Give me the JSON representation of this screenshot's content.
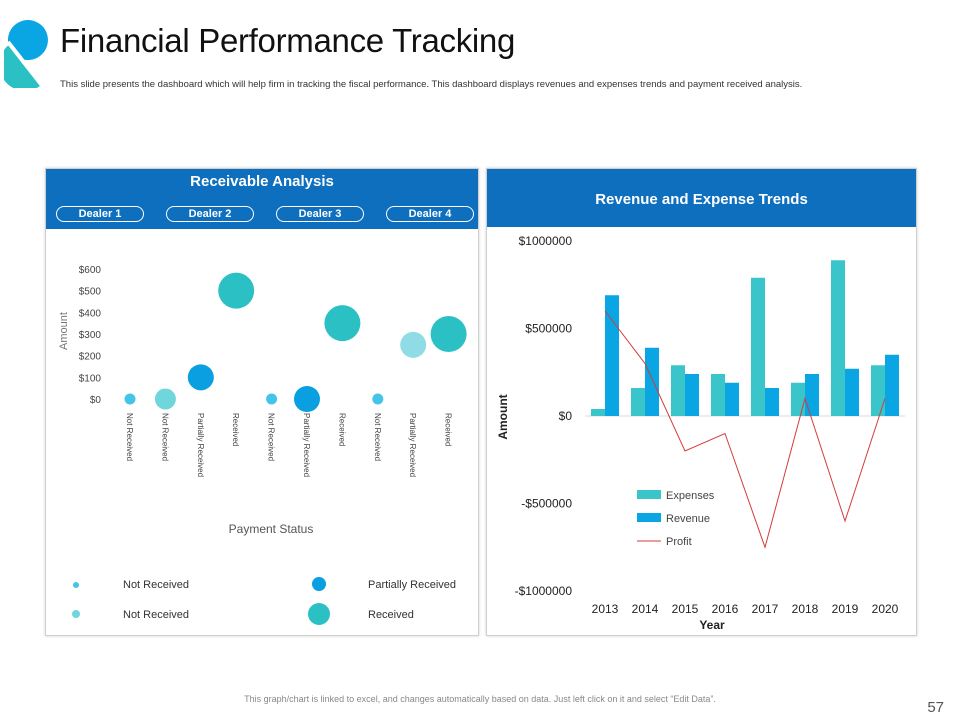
{
  "header": {
    "title": "Financial Performance Tracking",
    "subtitle": "This slide presents the dashboard which will help firm in tracking the fiscal performance. This dashboard displays revenues and expenses trends and payment received analysis."
  },
  "footer": {
    "note": "This graph/chart is linked to excel, and changes automatically based on data. Just left click on it and select “Edit Data”.",
    "page_number": "57"
  },
  "colors": {
    "header_blue": "#0d6fbe",
    "expenses": "#39c5c9",
    "revenue": "#0aa5e3",
    "profit": "#d43b3b",
    "not_received_light": "#8fdce6",
    "received": "#2bc1c4",
    "partially_received": "#0a9fe0"
  },
  "receivable": {
    "title": "Receivable Analysis",
    "dealers": [
      "Dealer 1",
      "Dealer 2",
      "Dealer 3",
      "Dealer 4"
    ],
    "legend": [
      {
        "label": "Not Received",
        "color": "#44c4e8",
        "size": "tiny"
      },
      {
        "label": "Partially  Received",
        "color": "#0a9fe0",
        "size": "medium"
      },
      {
        "label": "Not Received",
        "color": "#6fd6dc",
        "size": "small"
      },
      {
        "label": "Received",
        "color": "#2bc1c4",
        "size": "large"
      }
    ]
  },
  "chart_data": [
    {
      "type": "scatter",
      "title": "Receivable Analysis",
      "xlabel": "Payment Status",
      "ylabel": "Amount",
      "ylim": [
        0,
        600
      ],
      "yticks": [
        "$0",
        "$100",
        "$200",
        "$300",
        "$400",
        "$500",
        "$600"
      ],
      "categories": [
        "Not Received",
        "Not Received",
        "Partially Received",
        "Received",
        "Not Received",
        "Partially Received",
        "Received",
        "Not Received",
        "Partially Received",
        "Received"
      ],
      "values": [
        0,
        0,
        100,
        500,
        0,
        0,
        350,
        0,
        250,
        300
      ],
      "bubble_sizes": [
        1,
        3,
        4,
        6,
        1,
        4,
        6,
        1,
        4,
        6
      ],
      "point_colors": [
        "#44c4e8",
        "#6fd6dc",
        "#0a9fe0",
        "#2bc1c4",
        "#44c4e8",
        "#0a9fe0",
        "#2bc1c4",
        "#44c4e8",
        "#8fdce6",
        "#2bc1c4"
      ]
    },
    {
      "type": "bar",
      "title": "Revenue and Expense Trends",
      "xlabel": "Year",
      "ylabel": "Amount",
      "ylim": [
        -1000000,
        1000000
      ],
      "yticks": [
        "$1000000",
        "$500000",
        "$0",
        "-$500000",
        "-$1000000"
      ],
      "categories": [
        "2013",
        "2014",
        "2015",
        "2016",
        "2017",
        "2018",
        "2019",
        "2020"
      ],
      "series": [
        {
          "name": "Expenses",
          "type": "bar",
          "values": [
            40000,
            160000,
            290000,
            240000,
            790000,
            190000,
            890000,
            290000
          ]
        },
        {
          "name": "Revenue",
          "type": "bar",
          "values": [
            690000,
            390000,
            240000,
            190000,
            160000,
            240000,
            270000,
            350000
          ]
        },
        {
          "name": "Profit",
          "type": "line",
          "values": [
            600000,
            300000,
            -200000,
            -100000,
            -750000,
            100000,
            -600000,
            100000
          ]
        }
      ]
    }
  ]
}
